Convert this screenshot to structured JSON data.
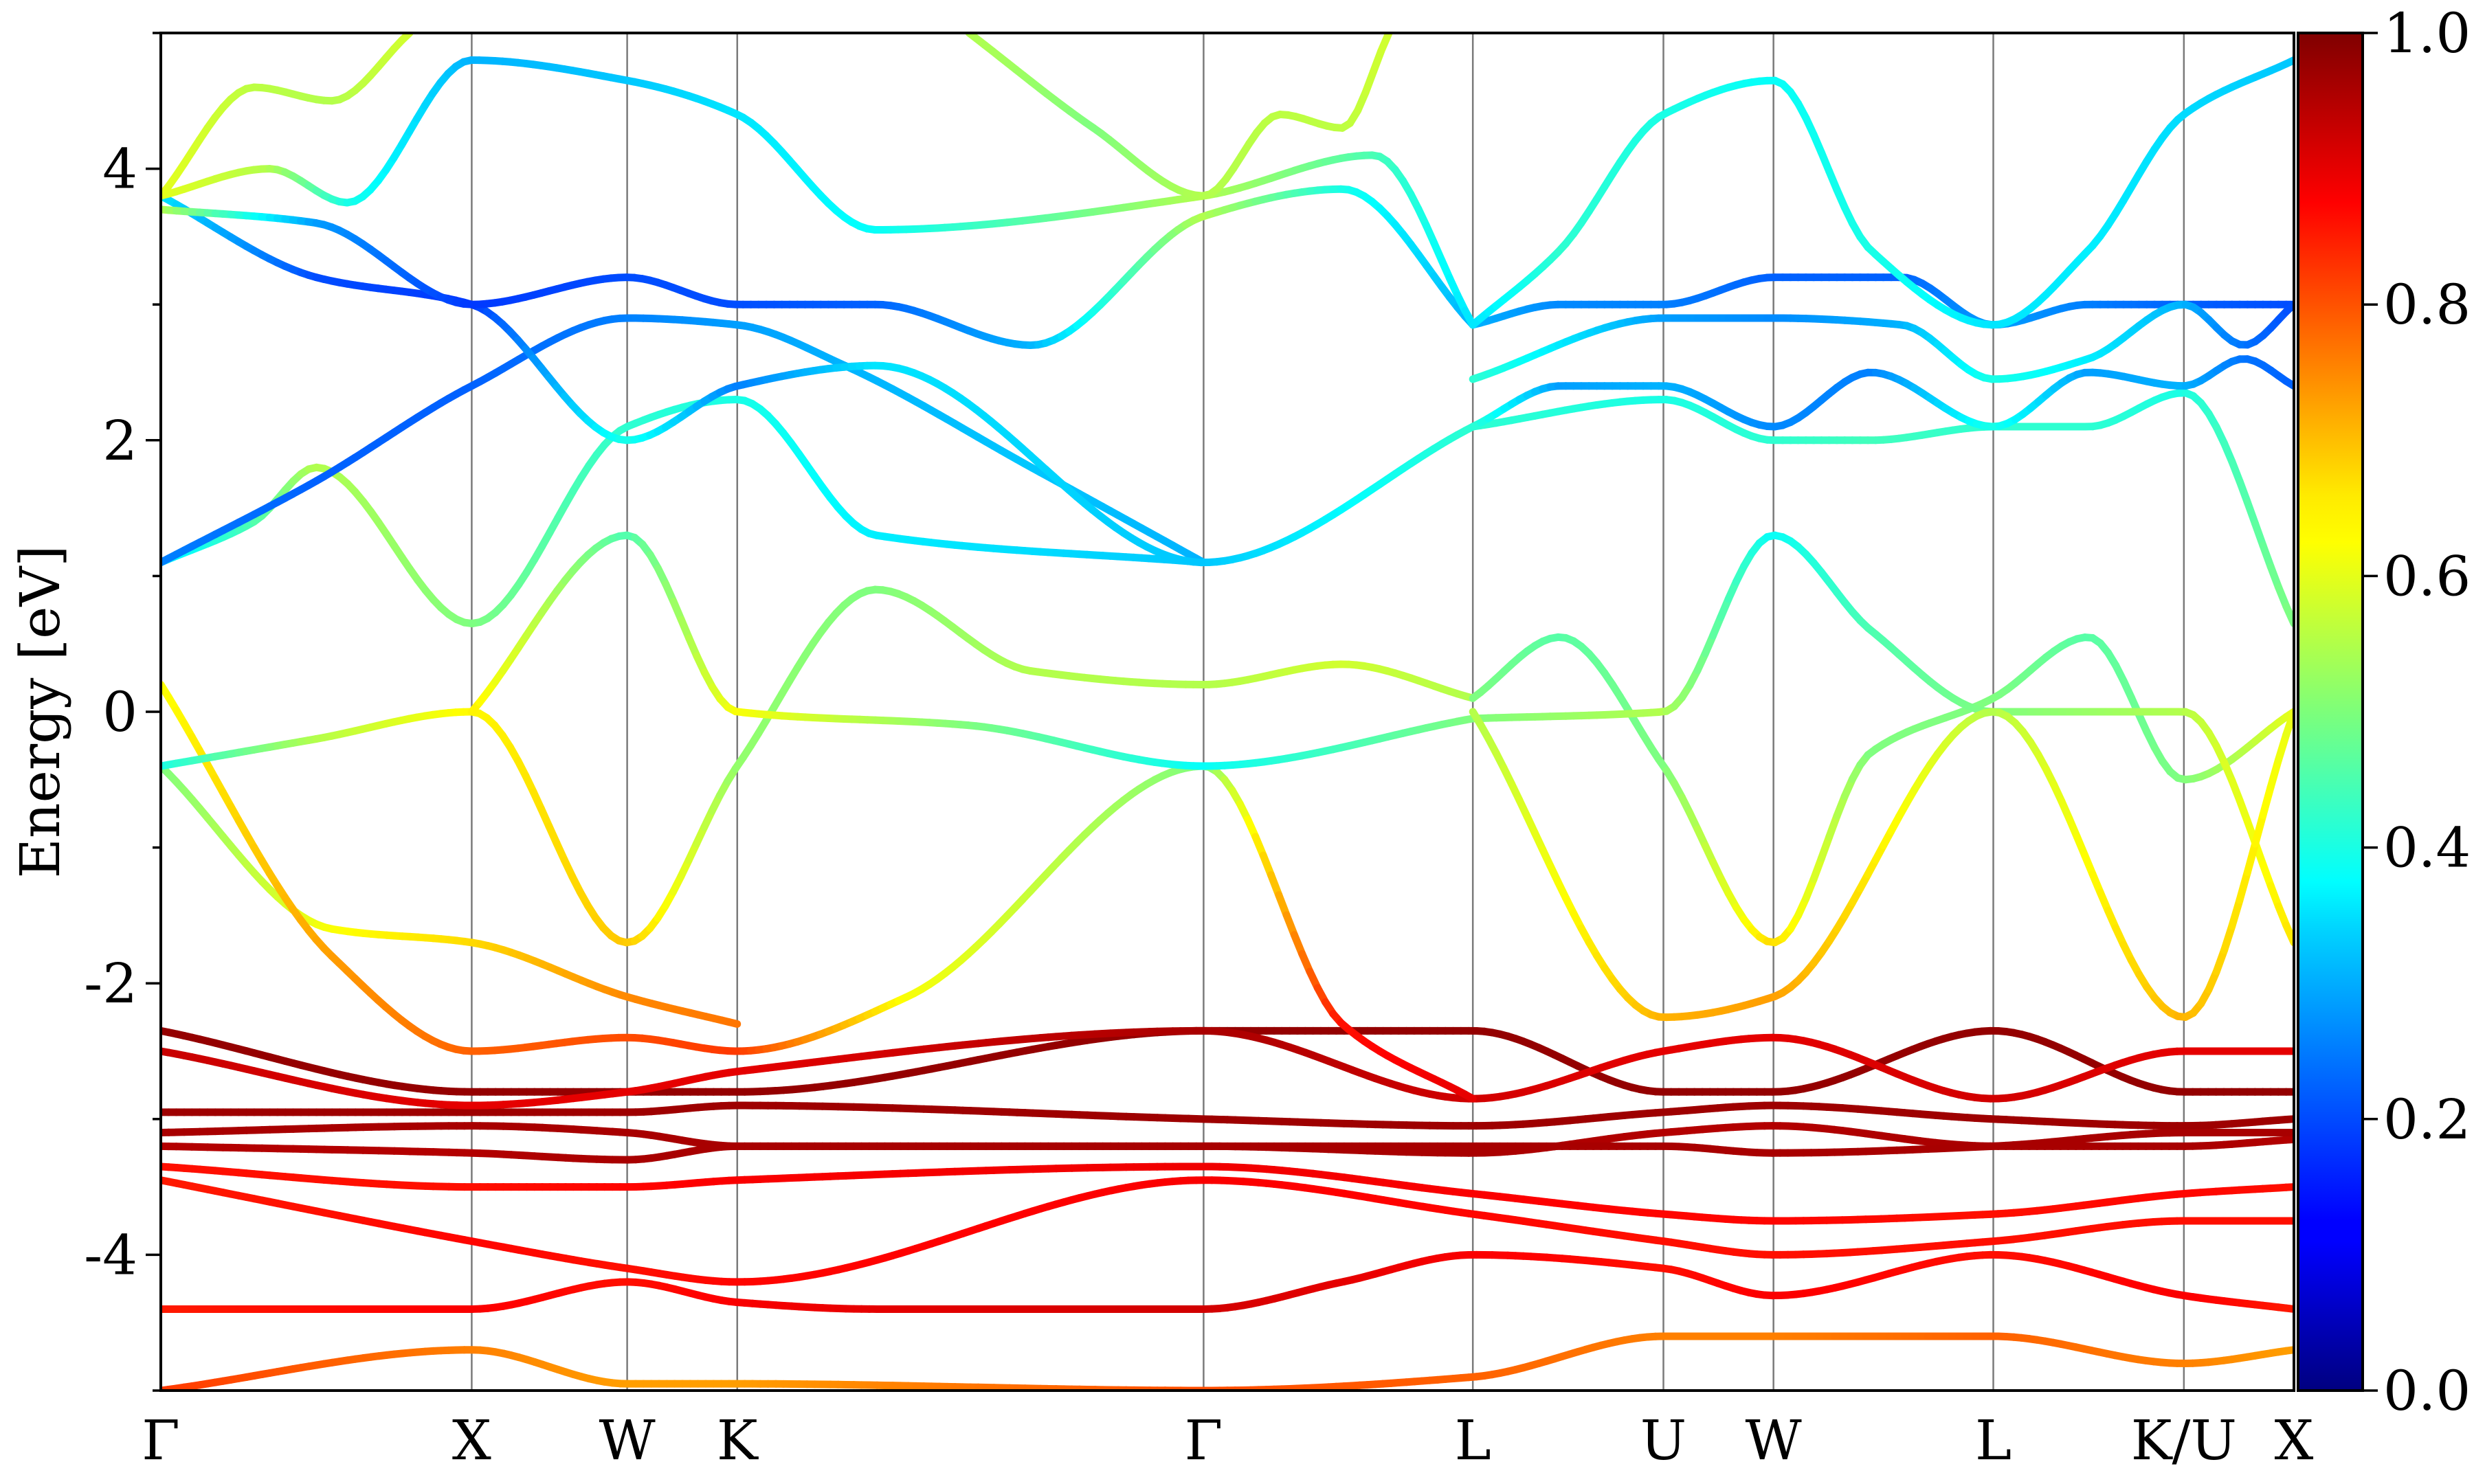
{
  "chart_data": {
    "type": "line",
    "ylabel": "Energy [eV]",
    "xlabel": "",
    "ylim": [
      -5,
      5
    ],
    "yticks": [
      -4,
      -2,
      0,
      2,
      4
    ],
    "colorbar": {
      "colormap": "jet",
      "range": [
        0.0,
        1.0
      ],
      "ticks": [
        "0.0",
        "0.2",
        "0.4",
        "0.6",
        "0.8",
        "1.0"
      ]
    },
    "kpath": {
      "labels": [
        "Γ",
        "X",
        "W",
        "K",
        "Γ",
        "L",
        "U",
        "W",
        "L",
        "K/U",
        "X"
      ],
      "positions": [
        0.0,
        1.0,
        1.5,
        1.854,
        3.354,
        4.22,
        4.833,
        5.187,
        5.894,
        6.507,
        6.861
      ]
    },
    "series": [
      {
        "x": [
          0,
          1,
          1.5,
          1.854,
          2.3,
          3.354,
          3.8,
          4.22,
          4.833,
          5.187,
          5.894,
          6.507,
          6.861
        ],
        "y": [
          -4.4,
          -4.4,
          -4.2,
          -4.35,
          -4.4,
          -4.4,
          -4.2,
          -4.0,
          -4.1,
          -4.3,
          -4.0,
          -4.3,
          -4.4
        ],
        "w": [
          0.85,
          0.88,
          0.86,
          0.88,
          0.9,
          0.92,
          0.9,
          0.88,
          0.86,
          0.88,
          0.86,
          0.88,
          0.85
        ]
      },
      {
        "x": [
          0,
          1,
          1.5,
          1.854,
          3.354,
          4.22,
          4.833,
          5.187,
          5.894,
          6.507,
          6.861
        ],
        "y": [
          -3.45,
          -3.9,
          -4.1,
          -4.2,
          -3.45,
          -3.7,
          -3.9,
          -4.0,
          -3.9,
          -3.75,
          -3.75
        ],
        "w": [
          0.85,
          0.87,
          0.86,
          0.87,
          0.88,
          0.87,
          0.86,
          0.86,
          0.86,
          0.86,
          0.86
        ]
      },
      {
        "x": [
          0,
          1,
          1.5,
          1.854,
          3.354,
          4.22,
          4.833,
          5.187,
          5.894,
          6.507,
          6.861
        ],
        "y": [
          -3.35,
          -3.5,
          -3.5,
          -3.45,
          -3.35,
          -3.55,
          -3.7,
          -3.75,
          -3.7,
          -3.55,
          -3.5
        ],
        "w": [
          0.86,
          0.86,
          0.87,
          0.88,
          0.89,
          0.88,
          0.87,
          0.87,
          0.86,
          0.87,
          0.86
        ]
      },
      {
        "x": [
          0,
          1,
          1.5,
          1.854,
          3.354,
          4.22,
          4.833,
          5.187,
          5.894,
          6.507,
          6.861
        ],
        "y": [
          -3.2,
          -3.25,
          -3.3,
          -3.2,
          -3.2,
          -3.25,
          -3.1,
          -3.05,
          -3.2,
          -3.2,
          -3.15
        ],
        "w": [
          0.95,
          0.95,
          0.96,
          0.96,
          0.96,
          0.96,
          0.95,
          0.95,
          0.96,
          0.96,
          0.95
        ]
      },
      {
        "x": [
          0,
          1,
          1.5,
          1.854,
          3.354,
          4.22,
          4.833,
          5.187,
          5.894,
          6.507,
          6.861
        ],
        "y": [
          -3.1,
          -3.05,
          -3.1,
          -3.2,
          -3.2,
          -3.2,
          -3.2,
          -3.25,
          -3.2,
          -3.1,
          -3.1
        ],
        "w": [
          0.96,
          0.96,
          0.96,
          0.96,
          0.96,
          0.96,
          0.96,
          0.96,
          0.96,
          0.96,
          0.96
        ]
      },
      {
        "x": [
          0,
          1,
          1.5,
          1.854,
          3.354,
          4.22,
          4.833,
          5.187,
          5.894,
          6.507,
          6.861
        ],
        "y": [
          -2.95,
          -2.95,
          -2.95,
          -2.9,
          -3.0,
          -3.05,
          -2.95,
          -2.9,
          -3.0,
          -3.05,
          -3.0
        ],
        "w": [
          0.97,
          0.97,
          0.97,
          0.97,
          0.97,
          0.97,
          0.97,
          0.97,
          0.97,
          0.97,
          0.97
        ]
      },
      {
        "x": [
          0,
          1,
          1.5,
          1.854,
          3.354,
          4.22,
          4.833,
          5.187,
          5.894,
          6.507,
          6.861
        ],
        "y": [
          -2.35,
          -2.8,
          -2.8,
          -2.8,
          -2.35,
          -2.35,
          -2.8,
          -2.8,
          -2.35,
          -2.8,
          -2.8
        ],
        "w": [
          0.98,
          0.98,
          0.98,
          0.98,
          0.98,
          0.98,
          0.98,
          0.98,
          0.98,
          0.98,
          0.98
        ]
      },
      {
        "x": [
          0,
          1,
          1.5,
          1.854,
          3.354,
          4.22,
          4.833,
          5.187,
          5.894,
          6.507,
          6.861
        ],
        "y": [
          -2.5,
          -2.9,
          -2.8,
          -2.65,
          -2.35,
          -2.85,
          -2.5,
          -2.4,
          -2.85,
          -2.5,
          -2.5
        ],
        "w": [
          0.93,
          0.9,
          0.9,
          0.9,
          0.96,
          0.92,
          0.9,
          0.9,
          0.92,
          0.9,
          0.9
        ]
      },
      {
        "x": [
          0,
          1,
          1.5,
          1.854,
          3.354,
          4.22,
          4.833,
          5.187,
          5.894,
          6.507,
          6.861
        ],
        "y": [
          -5.0,
          -4.7,
          -4.95,
          -4.95,
          -5.0,
          -4.9,
          -4.6,
          -4.6,
          -4.6,
          -4.8,
          -4.7
        ],
        "w": [
          0.82,
          0.75,
          0.72,
          0.72,
          0.8,
          0.78,
          0.75,
          0.75,
          0.78,
          0.75,
          0.72
        ]
      },
      {
        "x": [
          0,
          0.55,
          1,
          1.5,
          1.854
        ],
        "y": [
          -0.4,
          -1.6,
          -1.7,
          -2.1,
          -2.3
        ],
        "w": [
          0.5,
          0.62,
          0.66,
          0.74,
          0.76
        ]
      },
      {
        "x": [
          0,
          0.55,
          1,
          1.5,
          1.854,
          2.4,
          3.354,
          3.8,
          4.22
        ],
        "y": [
          0.2,
          -1.8,
          -2.5,
          -2.4,
          -2.5,
          -2.1,
          -0.4,
          -2.3,
          -2.85
        ],
        "w": [
          0.62,
          0.72,
          0.78,
          0.8,
          0.82,
          0.62,
          0.5,
          0.86,
          0.9
        ]
      },
      {
        "x": [
          0,
          0.5,
          1,
          1.5,
          1.854,
          2.3,
          2.8,
          3.354,
          3.8,
          4.22
        ],
        "y": [
          -0.4,
          -0.2,
          0.0,
          -1.7,
          -0.4,
          0.9,
          0.3,
          0.2,
          0.35,
          0.1
        ],
        "w": [
          0.4,
          0.55,
          0.63,
          0.68,
          0.52,
          0.5,
          0.55,
          0.55,
          0.58,
          0.55
        ]
      },
      {
        "x": [
          1,
          1.5,
          1.854,
          2.6,
          3.354,
          4.22
        ],
        "y": [
          0.0,
          1.3,
          0.0,
          -0.1,
          -0.4,
          -0.05
        ],
        "w": [
          0.64,
          0.45,
          0.62,
          0.5,
          0.38,
          0.5
        ]
      },
      {
        "x": [
          4.22,
          4.5,
          4.833,
          5.187,
          5.5,
          5.894,
          6.2,
          6.507,
          6.861
        ],
        "y": [
          0.1,
          0.55,
          -0.4,
          -1.7,
          -0.3,
          0.1,
          0.55,
          -0.5,
          0.0
        ],
        "w": [
          0.5,
          0.46,
          0.5,
          0.66,
          0.5,
          0.5,
          0.46,
          0.5,
          0.6
        ]
      },
      {
        "x": [
          4.22,
          4.833,
          5.187,
          5.5,
          5.894,
          6.507,
          6.861
        ],
        "y": [
          -0.05,
          0.0,
          1.3,
          0.6,
          0.0,
          0.0,
          -1.7
        ],
        "w": [
          0.5,
          0.55,
          0.38,
          0.45,
          0.5,
          0.55,
          0.65
        ]
      },
      {
        "x": [
          4.22,
          4.833,
          5.187,
          5.894,
          6.507,
          6.861
        ],
        "y": [
          0.0,
          -2.25,
          -2.1,
          0.0,
          -2.25,
          0.0
        ],
        "w": [
          0.55,
          0.7,
          0.72,
          0.55,
          0.7,
          0.6
        ]
      },
      {
        "x": [
          0,
          0.3,
          0.5,
          1,
          1.5,
          1.854,
          2.3,
          3.354
        ],
        "y": [
          1.1,
          1.4,
          1.8,
          0.65,
          2.1,
          2.3,
          1.3,
          1.1
        ],
        "w": [
          0.35,
          0.45,
          0.55,
          0.5,
          0.42,
          0.4,
          0.36,
          0.32
        ]
      },
      {
        "x": [
          0,
          0.5,
          1,
          1.5,
          1.854,
          2.2,
          2.8,
          3.354
        ],
        "y": [
          1.1,
          1.7,
          2.4,
          2.9,
          2.85,
          2.55,
          1.8,
          1.1
        ],
        "w": [
          0.25,
          0.22,
          0.22,
          0.25,
          0.28,
          0.3,
          0.32,
          0.3
        ]
      },
      {
        "x": [
          0,
          0.5,
          1,
          1.5,
          1.854,
          2.3,
          3.354,
          4.22
        ],
        "y": [
          3.8,
          3.2,
          3.0,
          2.0,
          2.4,
          2.55,
          1.1,
          2.1
        ],
        "w": [
          0.35,
          0.2,
          0.18,
          0.4,
          0.25,
          0.35,
          0.32,
          0.42
        ]
      },
      {
        "x": [
          0,
          0.5,
          1,
          1.5,
          1.854,
          2.3,
          2.8,
          3.354,
          3.8,
          4.22
        ],
        "y": [
          3.7,
          3.6,
          3.0,
          3.2,
          3.0,
          3.0,
          2.7,
          3.65,
          3.85,
          2.85
        ],
        "w": [
          0.55,
          0.28,
          0.18,
          0.2,
          0.2,
          0.22,
          0.3,
          0.55,
          0.4,
          0.3
        ]
      },
      {
        "x": [
          0,
          0.35,
          0.6,
          1,
          1.5,
          1.854,
          2.3,
          3.354,
          3.9,
          4.22
        ],
        "y": [
          3.8,
          4.0,
          3.75,
          4.8,
          4.65,
          4.4,
          3.55,
          3.8,
          4.1,
          2.85
        ],
        "w": [
          0.6,
          0.55,
          0.4,
          0.3,
          0.32,
          0.35,
          0.38,
          0.55,
          0.45,
          0.35
        ]
      },
      {
        "x": [
          0,
          0.3,
          0.55,
          0.8
        ],
        "y": [
          3.8,
          4.6,
          4.5,
          5.0
        ],
        "w": [
          0.6,
          0.56,
          0.55,
          0.58
        ]
      },
      {
        "x": [
          2.6,
          3.0,
          3.354,
          3.6,
          3.8,
          3.95
        ],
        "y": [
          5.0,
          4.3,
          3.8,
          4.4,
          4.3,
          5.0
        ],
        "w": [
          0.55,
          0.5,
          0.55,
          0.56,
          0.56,
          0.58
        ]
      },
      {
        "x": [
          4.22,
          4.5,
          4.833,
          5.187,
          5.6,
          5.894,
          6.2,
          6.507,
          6.861
        ],
        "y": [
          2.85,
          3.0,
          3.0,
          3.2,
          3.2,
          2.85,
          3.0,
          3.0,
          3.0
        ],
        "w": [
          0.3,
          0.26,
          0.25,
          0.22,
          0.22,
          0.28,
          0.25,
          0.22,
          0.2
        ]
      },
      {
        "x": [
          4.22,
          4.833,
          5.187,
          5.6,
          5.894,
          6.2,
          6.507,
          6.7,
          6.861
        ],
        "y": [
          2.45,
          2.9,
          2.9,
          2.85,
          2.45,
          2.6,
          3.0,
          2.7,
          3.0
        ],
        "w": [
          0.42,
          0.28,
          0.26,
          0.3,
          0.4,
          0.36,
          0.3,
          0.24,
          0.2
        ]
      },
      {
        "x": [
          4.22,
          4.833,
          5.187,
          5.5,
          5.894,
          6.2,
          6.507,
          6.861
        ],
        "y": [
          2.1,
          2.3,
          2.0,
          2.0,
          2.1,
          2.1,
          2.35,
          0.65
        ],
        "w": [
          0.42,
          0.4,
          0.42,
          0.44,
          0.42,
          0.42,
          0.4,
          0.5
        ]
      },
      {
        "x": [
          4.22,
          4.5,
          4.833,
          5.187,
          5.5,
          5.894,
          6.2,
          6.507,
          6.7,
          6.861
        ],
        "y": [
          2.1,
          2.4,
          2.4,
          2.1,
          2.5,
          2.1,
          2.5,
          2.4,
          2.6,
          2.4
        ],
        "w": [
          0.42,
          0.28,
          0.3,
          0.26,
          0.25,
          0.4,
          0.28,
          0.3,
          0.24,
          0.22
        ]
      },
      {
        "x": [
          4.22,
          4.5,
          4.833,
          5.187,
          5.5,
          5.894,
          6.2,
          6.507,
          6.861
        ],
        "y": [
          2.85,
          3.4,
          4.4,
          4.65,
          3.4,
          2.85,
          3.4,
          4.4,
          4.8
        ],
        "w": [
          0.35,
          0.42,
          0.4,
          0.38,
          0.4,
          0.35,
          0.36,
          0.34,
          0.32
        ]
      }
    ]
  }
}
